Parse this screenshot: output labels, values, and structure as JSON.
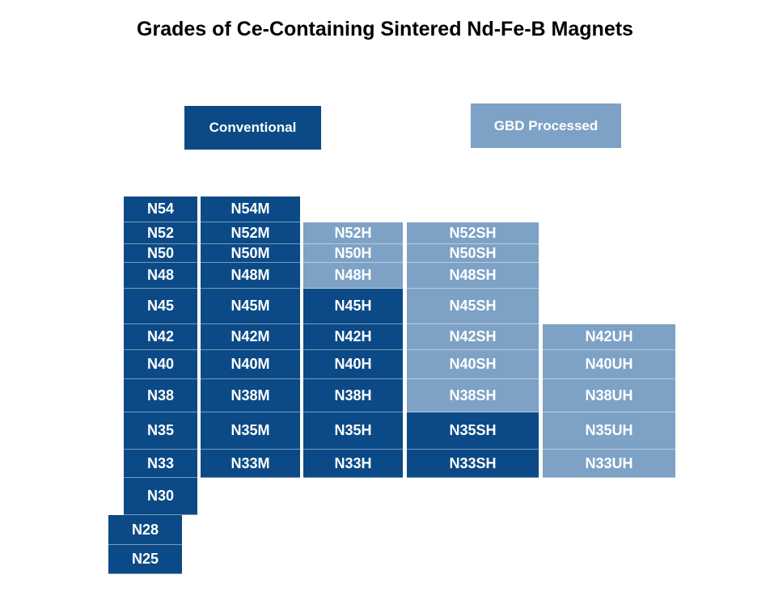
{
  "title": "Grades of Ce-Containing Sintered Nd-Fe-B Magnets",
  "colors": {
    "conventional": "#0b4a86",
    "gbd_processed": "#7da2c6"
  },
  "legend": {
    "conventional": "Conventional",
    "gbd_processed": "GBD Processed"
  },
  "columns": [
    {
      "series": "",
      "cells": [
        {
          "label": "N54",
          "type": "conventional"
        },
        {
          "label": "N52",
          "type": "conventional"
        },
        {
          "label": "N50",
          "type": "conventional"
        },
        {
          "label": "N48",
          "type": "conventional"
        },
        {
          "label": "N45",
          "type": "conventional"
        },
        {
          "label": "N42",
          "type": "conventional"
        },
        {
          "label": "N40",
          "type": "conventional"
        },
        {
          "label": "N38",
          "type": "conventional"
        },
        {
          "label": "N35",
          "type": "conventional"
        },
        {
          "label": "N33",
          "type": "conventional"
        },
        {
          "label": "N30",
          "type": "conventional"
        },
        {
          "label": "N28",
          "type": "conventional"
        },
        {
          "label": "N25",
          "type": "conventional"
        }
      ]
    },
    {
      "series": "M",
      "cells": [
        {
          "label": "N54M",
          "type": "conventional"
        },
        {
          "label": "N52M",
          "type": "conventional"
        },
        {
          "label": "N50M",
          "type": "conventional"
        },
        {
          "label": "N48M",
          "type": "conventional"
        },
        {
          "label": "N45M",
          "type": "conventional"
        },
        {
          "label": "N42M",
          "type": "conventional"
        },
        {
          "label": "N40M",
          "type": "conventional"
        },
        {
          "label": "N38M",
          "type": "conventional"
        },
        {
          "label": "N35M",
          "type": "conventional"
        },
        {
          "label": "N33M",
          "type": "conventional"
        }
      ]
    },
    {
      "series": "H",
      "cells": [
        {
          "label": "N52H",
          "type": "gbd_processed"
        },
        {
          "label": "N50H",
          "type": "gbd_processed"
        },
        {
          "label": "N48H",
          "type": "gbd_processed"
        },
        {
          "label": "N45H",
          "type": "conventional"
        },
        {
          "label": "N42H",
          "type": "conventional"
        },
        {
          "label": "N40H",
          "type": "conventional"
        },
        {
          "label": "N38H",
          "type": "conventional"
        },
        {
          "label": "N35H",
          "type": "conventional"
        },
        {
          "label": "N33H",
          "type": "conventional"
        }
      ]
    },
    {
      "series": "SH",
      "cells": [
        {
          "label": "N52SH",
          "type": "gbd_processed"
        },
        {
          "label": "N50SH",
          "type": "gbd_processed"
        },
        {
          "label": "N48SH",
          "type": "gbd_processed"
        },
        {
          "label": "N45SH",
          "type": "gbd_processed"
        },
        {
          "label": "N42SH",
          "type": "gbd_processed"
        },
        {
          "label": "N40SH",
          "type": "gbd_processed"
        },
        {
          "label": "N38SH",
          "type": "gbd_processed"
        },
        {
          "label": "N35SH",
          "type": "conventional"
        },
        {
          "label": "N33SH",
          "type": "conventional"
        }
      ]
    },
    {
      "series": "UH",
      "cells": [
        {
          "label": "N42UH",
          "type": "gbd_processed"
        },
        {
          "label": "N40UH",
          "type": "gbd_processed"
        },
        {
          "label": "N38UH",
          "type": "gbd_processed"
        },
        {
          "label": "N35UH",
          "type": "gbd_processed"
        },
        {
          "label": "N33UH",
          "type": "gbd_processed"
        }
      ]
    }
  ]
}
